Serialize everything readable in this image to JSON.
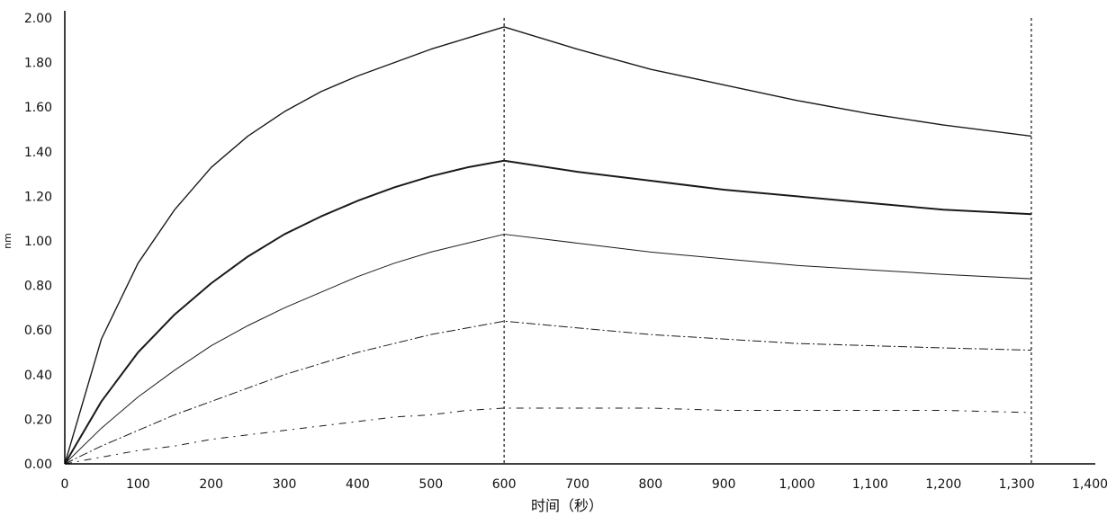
{
  "chart_data": {
    "type": "line",
    "title": "",
    "xlabel": "时间（秒）",
    "ylabel": "nm",
    "xlim": [
      0,
      1400
    ],
    "ylim": [
      0,
      2.0
    ],
    "x_ticks": [
      0,
      100,
      200,
      300,
      400,
      500,
      600,
      700,
      800,
      900,
      1000,
      1100,
      1200,
      1300,
      1400
    ],
    "x_tick_labels": [
      "0",
      "100",
      "200",
      "300",
      "400",
      "500",
      "600",
      "700",
      "800",
      "900",
      "1,000",
      "1,100",
      "1,200",
      "1,300",
      "1,400"
    ],
    "y_ticks": [
      0,
      0.2,
      0.4,
      0.6,
      0.8,
      1.0,
      1.2,
      1.4,
      1.6,
      1.8,
      2.0
    ],
    "y_tick_labels": [
      "0.00",
      "0.20",
      "0.40",
      "0.60",
      "0.80",
      "1.00",
      "1.20",
      "1.40",
      "1.60",
      "1.80",
      "2.00"
    ],
    "reference_lines_x": [
      600,
      1320
    ],
    "grid": false,
    "legend": "none",
    "series": [
      {
        "x": [
          0,
          50,
          100,
          150,
          200,
          250,
          300,
          350,
          400,
          450,
          500,
          550,
          600,
          700,
          800,
          900,
          1000,
          1100,
          1200,
          1320
        ],
        "values": [
          0,
          0.56,
          0.9,
          1.14,
          1.33,
          1.47,
          1.58,
          1.67,
          1.74,
          1.8,
          1.86,
          1.91,
          1.96,
          1.86,
          1.77,
          1.7,
          1.63,
          1.57,
          1.52,
          1.47
        ]
      },
      {
        "x": [
          0,
          50,
          100,
          150,
          200,
          250,
          300,
          350,
          400,
          450,
          500,
          550,
          600,
          700,
          800,
          900,
          1000,
          1100,
          1200,
          1320
        ],
        "values": [
          0,
          0.28,
          0.5,
          0.67,
          0.81,
          0.93,
          1.03,
          1.11,
          1.18,
          1.24,
          1.29,
          1.33,
          1.36,
          1.31,
          1.27,
          1.23,
          1.2,
          1.17,
          1.14,
          1.12
        ]
      },
      {
        "x": [
          0,
          50,
          100,
          150,
          200,
          250,
          300,
          350,
          400,
          450,
          500,
          550,
          600,
          700,
          800,
          900,
          1000,
          1100,
          1200,
          1320
        ],
        "values": [
          0,
          0.16,
          0.3,
          0.42,
          0.53,
          0.62,
          0.7,
          0.77,
          0.84,
          0.9,
          0.95,
          0.99,
          1.03,
          0.99,
          0.95,
          0.92,
          0.89,
          0.87,
          0.85,
          0.83
        ]
      },
      {
        "x": [
          0,
          50,
          100,
          150,
          200,
          250,
          300,
          350,
          400,
          450,
          500,
          550,
          600,
          700,
          800,
          900,
          1000,
          1100,
          1200,
          1320
        ],
        "values": [
          0,
          0.08,
          0.15,
          0.22,
          0.28,
          0.34,
          0.4,
          0.45,
          0.5,
          0.54,
          0.58,
          0.61,
          0.64,
          0.61,
          0.58,
          0.56,
          0.54,
          0.53,
          0.52,
          0.51
        ]
      },
      {
        "x": [
          0,
          50,
          100,
          150,
          200,
          250,
          300,
          350,
          400,
          450,
          500,
          550,
          600,
          700,
          800,
          900,
          1000,
          1100,
          1200,
          1320
        ],
        "values": [
          0,
          0.03,
          0.06,
          0.08,
          0.11,
          0.13,
          0.15,
          0.17,
          0.19,
          0.21,
          0.22,
          0.24,
          0.25,
          0.25,
          0.25,
          0.24,
          0.24,
          0.24,
          0.24,
          0.23
        ]
      }
    ]
  }
}
